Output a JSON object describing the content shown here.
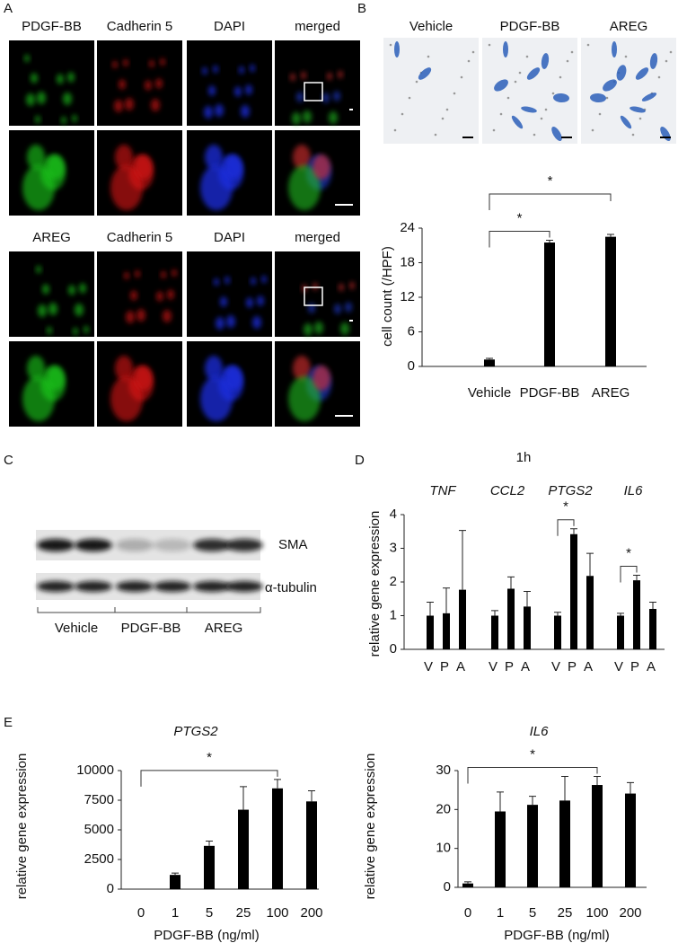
{
  "panel_labels": [
    "A",
    "B",
    "C",
    "D",
    "E"
  ],
  "panel_a": {
    "top_labels": [
      "PDGF-BB",
      "Cadherin 5",
      "DAPI",
      "merged"
    ],
    "bottom_labels": [
      "AREG",
      "Cadherin 5",
      "DAPI",
      "merged"
    ]
  },
  "panel_b": {
    "image_labels": [
      "Vehicle",
      "PDGF-BB",
      "AREG"
    ]
  },
  "panel_c": {
    "bands": [
      "SMA",
      "α-tubulin"
    ],
    "groups": [
      "Vehicle",
      "PDGF-BB",
      "AREG"
    ]
  },
  "chart_data": [
    {
      "type": "bar",
      "ylabel": "cell count (/HPF)",
      "categories": [
        "Vehicle",
        "PDGF-BB",
        "AREG"
      ],
      "values": [
        1.2,
        21.5,
        22.5
      ],
      "errors": [
        0.2,
        0.4,
        0.4
      ],
      "color": "#000000",
      "ylim": [
        0,
        24
      ],
      "yticks": [
        0,
        6,
        12,
        18,
        24
      ],
      "significance": [
        {
          "label": "*",
          "between": [
            "Vehicle",
            "PDGF-BB"
          ]
        },
        {
          "label": "*",
          "between": [
            "Vehicle",
            "AREG"
          ]
        }
      ]
    },
    {
      "type": "grouped_bar",
      "title": "1h",
      "ylabel": "relative gene expression",
      "categories": [
        "V",
        "P",
        "A"
      ],
      "groups": [
        {
          "name": "TNF",
          "values": [
            1.0,
            1.07,
            1.77
          ],
          "errors": [
            0.4,
            0.75,
            1.76
          ]
        },
        {
          "name": "CCL2",
          "values": [
            1.0,
            1.8,
            1.27
          ],
          "errors": [
            0.15,
            0.35,
            0.45
          ]
        },
        {
          "name": "PTGS2",
          "values": [
            1.0,
            3.42,
            2.18
          ],
          "errors": [
            0.1,
            0.16,
            0.67
          ]
        },
        {
          "name": "IL6",
          "values": [
            1.0,
            2.05,
            1.2
          ],
          "errors": [
            0.07,
            0.15,
            0.2
          ]
        }
      ],
      "color": "#000000",
      "ylim": [
        0,
        4
      ],
      "yticks": [
        0,
        1,
        2,
        3,
        4
      ],
      "significance": [
        {
          "label": "*",
          "group": "PTGS2",
          "between": [
            "V",
            "P"
          ]
        },
        {
          "label": "*",
          "group": "IL6",
          "between": [
            "V",
            "P"
          ]
        }
      ]
    },
    {
      "type": "bar",
      "title": "PTGS2",
      "xlabel": "PDGF-BB (ng/ml)",
      "ylabel": "relative gene  expression",
      "categories": [
        "0",
        "1",
        "5",
        "25",
        "100",
        "200"
      ],
      "values": [
        1,
        1200,
        3650,
        6700,
        8500,
        7400
      ],
      "errors": [
        0,
        150,
        400,
        1950,
        750,
        900
      ],
      "color": "#000000",
      "ylim": [
        0,
        10000
      ],
      "yticks": [
        0,
        2500,
        5000,
        7500,
        10000
      ],
      "significance": [
        {
          "label": "*",
          "between": [
            "0",
            "100"
          ]
        }
      ]
    },
    {
      "type": "bar",
      "title": "IL6",
      "xlabel": "PDGF-BB (ng/ml)",
      "ylabel": "relative gene expression",
      "categories": [
        "0",
        "1",
        "5",
        "25",
        "100",
        "200"
      ],
      "values": [
        1,
        19.5,
        21.2,
        22.3,
        26.3,
        24.1
      ],
      "errors": [
        0.4,
        5,
        2.2,
        6.2,
        2.2,
        2.8
      ],
      "color": "#000000",
      "ylim": [
        0,
        30
      ],
      "yticks": [
        0,
        10,
        20,
        30
      ],
      "significance": [
        {
          "label": "*",
          "between": [
            "0",
            "100"
          ]
        }
      ]
    }
  ]
}
